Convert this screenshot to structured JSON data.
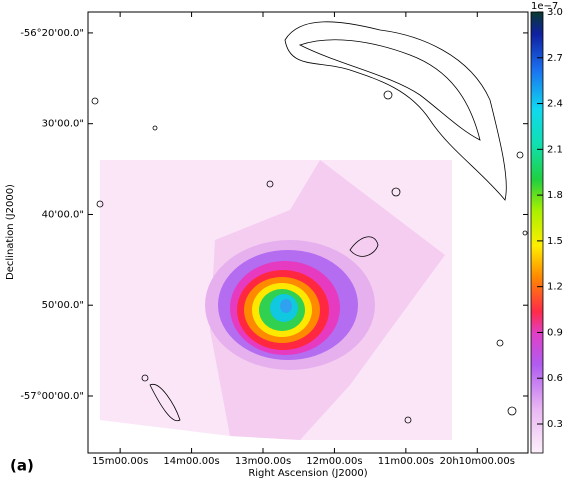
{
  "chart_data": {
    "type": "image",
    "panel_label": "(a)",
    "xlabel": "Right Ascension (J2000)",
    "ylabel": "Declination (J2000)",
    "xlim": [
      15.45,
      9.29
    ],
    "xticks": [
      {
        "value": 15,
        "label": "15m00.00s"
      },
      {
        "value": 14,
        "label": "14m00.00s"
      },
      {
        "value": 13,
        "label": "13m00.00s"
      },
      {
        "value": 12,
        "label": "12m00.00s"
      },
      {
        "value": 11,
        "label": "11m00.00s"
      },
      {
        "value": 10,
        "label": "20h10m00.00s"
      }
    ],
    "ylim": [
      -57.1047,
      -56.2949
    ],
    "yticks": [
      {
        "value": -56.3333,
        "label": "-56°20'00.0\""
      },
      {
        "value": -56.5,
        "label": "30'00.0\""
      },
      {
        "value": -56.6667,
        "label": "40'00.0\""
      },
      {
        "value": -56.8333,
        "label": "50'00.0\""
      },
      {
        "value": -57.0,
        "label": "-57°00'00.0\""
      }
    ],
    "colorbar": {
      "offset_label": "1e−7",
      "clim": [
        0.11,
        3.0
      ],
      "ticks": [
        0.3,
        0.6,
        0.9,
        1.2,
        1.5,
        1.8,
        2.1,
        2.4,
        2.7,
        {
          "value": 3.0,
          "label": "3.0"
        }
      ]
    }
  }
}
